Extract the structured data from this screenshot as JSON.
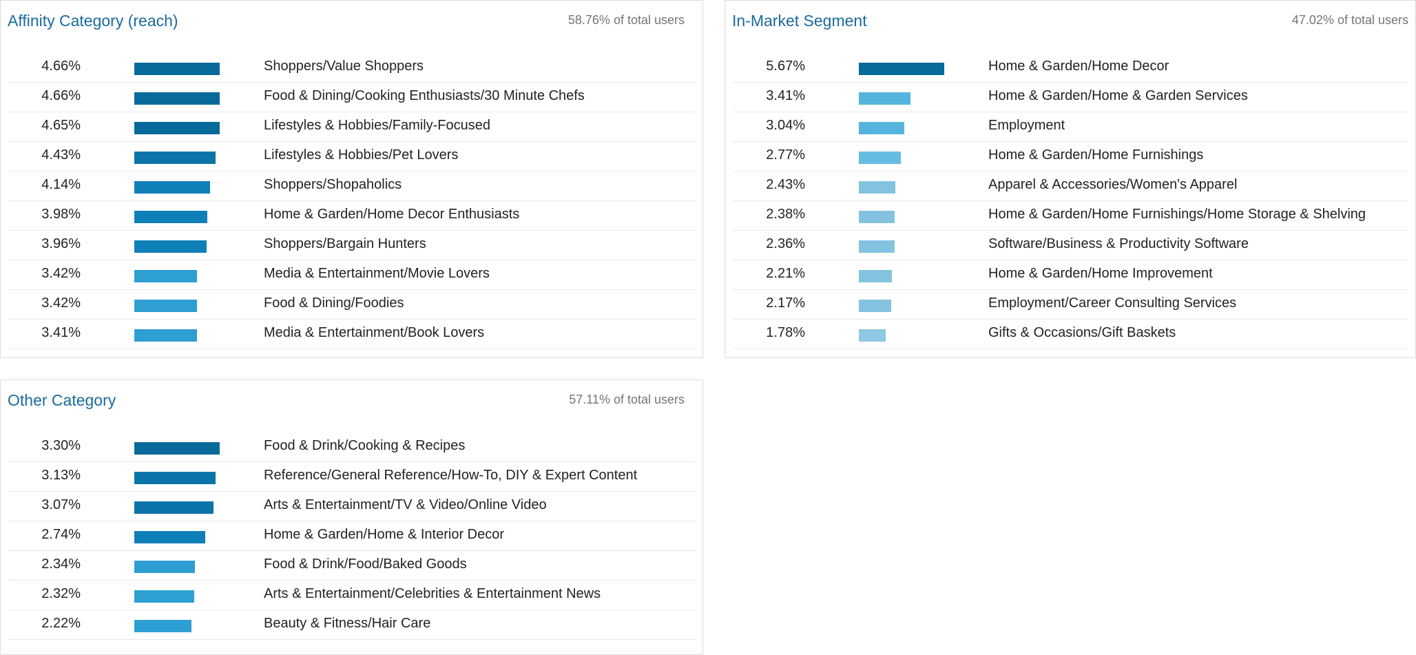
{
  "cards": [
    {
      "id": "affinity",
      "title": "Affinity Category (reach)",
      "summary": "58.76% of total users",
      "rows": [
        {
          "pct": "4.66%",
          "value": 4.66,
          "label": "Shoppers/Value Shoppers",
          "color": "#076a9a"
        },
        {
          "pct": "4.66%",
          "value": 4.66,
          "label": "Food & Dining/Cooking Enthusiasts/30 Minute Chefs",
          "color": "#076a9a"
        },
        {
          "pct": "4.65%",
          "value": 4.65,
          "label": "Lifestyles & Hobbies/Family-Focused",
          "color": "#076a9a"
        },
        {
          "pct": "4.43%",
          "value": 4.43,
          "label": "Lifestyles & Hobbies/Pet Lovers",
          "color": "#0a74a8"
        },
        {
          "pct": "4.14%",
          "value": 4.14,
          "label": "Shoppers/Shopaholics",
          "color": "#0f7fb8"
        },
        {
          "pct": "3.98%",
          "value": 3.98,
          "label": "Home & Garden/Home Decor Enthusiasts",
          "color": "#0f7fb8"
        },
        {
          "pct": "3.96%",
          "value": 3.96,
          "label": "Shoppers/Bargain Hunters",
          "color": "#0f7fb8"
        },
        {
          "pct": "3.42%",
          "value": 3.42,
          "label": "Media & Entertainment/Movie Lovers",
          "color": "#2e9fd3"
        },
        {
          "pct": "3.42%",
          "value": 3.42,
          "label": "Food & Dining/Foodies",
          "color": "#2e9fd3"
        },
        {
          "pct": "3.41%",
          "value": 3.41,
          "label": "Media & Entertainment/Book Lovers",
          "color": "#2e9fd3"
        }
      ]
    },
    {
      "id": "in-market",
      "title": "In-Market Segment",
      "summary": "47.02% of total users",
      "rows": [
        {
          "pct": "5.67%",
          "value": 5.67,
          "label": "Home & Garden/Home Decor",
          "color": "#076a9a"
        },
        {
          "pct": "3.41%",
          "value": 3.41,
          "label": "Home & Garden/Home & Garden Services",
          "color": "#55b5dd"
        },
        {
          "pct": "3.04%",
          "value": 3.04,
          "label": "Employment",
          "color": "#55b5dd"
        },
        {
          "pct": "2.77%",
          "value": 2.77,
          "label": "Home & Garden/Home Furnishings",
          "color": "#66bde2"
        },
        {
          "pct": "2.43%",
          "value": 2.43,
          "label": "Apparel & Accessories/Women's Apparel",
          "color": "#84c3e0"
        },
        {
          "pct": "2.38%",
          "value": 2.38,
          "label": "Home & Garden/Home Furnishings/Home Storage & Shelving",
          "color": "#84c3e0"
        },
        {
          "pct": "2.36%",
          "value": 2.36,
          "label": "Software/Business & Productivity Software",
          "color": "#84c3e0"
        },
        {
          "pct": "2.21%",
          "value": 2.21,
          "label": "Home & Garden/Home Improvement",
          "color": "#84c3e0"
        },
        {
          "pct": "2.17%",
          "value": 2.17,
          "label": "Employment/Career Consulting Services",
          "color": "#84c3e0"
        },
        {
          "pct": "1.78%",
          "value": 1.78,
          "label": "Gifts & Occasions/Gift Baskets",
          "color": "#8ec8e2"
        }
      ]
    },
    {
      "id": "other",
      "title": "Other Category",
      "summary": "57.11% of total users",
      "rows": [
        {
          "pct": "3.30%",
          "value": 3.3,
          "label": "Food & Drink/Cooking & Recipes",
          "color": "#076a9a"
        },
        {
          "pct": "3.13%",
          "value": 3.13,
          "label": "Reference/General Reference/How-To, DIY & Expert Content",
          "color": "#0a74a8"
        },
        {
          "pct": "3.07%",
          "value": 3.07,
          "label": "Arts & Entertainment/TV & Video/Online Video",
          "color": "#0a74a8"
        },
        {
          "pct": "2.74%",
          "value": 2.74,
          "label": "Home & Garden/Home & Interior Decor",
          "color": "#0f7fb8"
        },
        {
          "pct": "2.34%",
          "value": 2.34,
          "label": "Food & Drink/Food/Baked Goods",
          "color": "#2e9fd3"
        },
        {
          "pct": "2.32%",
          "value": 2.32,
          "label": "Arts & Entertainment/Celebrities & Entertainment News",
          "color": "#2e9fd3"
        },
        {
          "pct": "2.22%",
          "value": 2.22,
          "label": "Beauty & Fitness/Hair Care",
          "color": "#2e9fd3"
        }
      ]
    }
  ]
}
